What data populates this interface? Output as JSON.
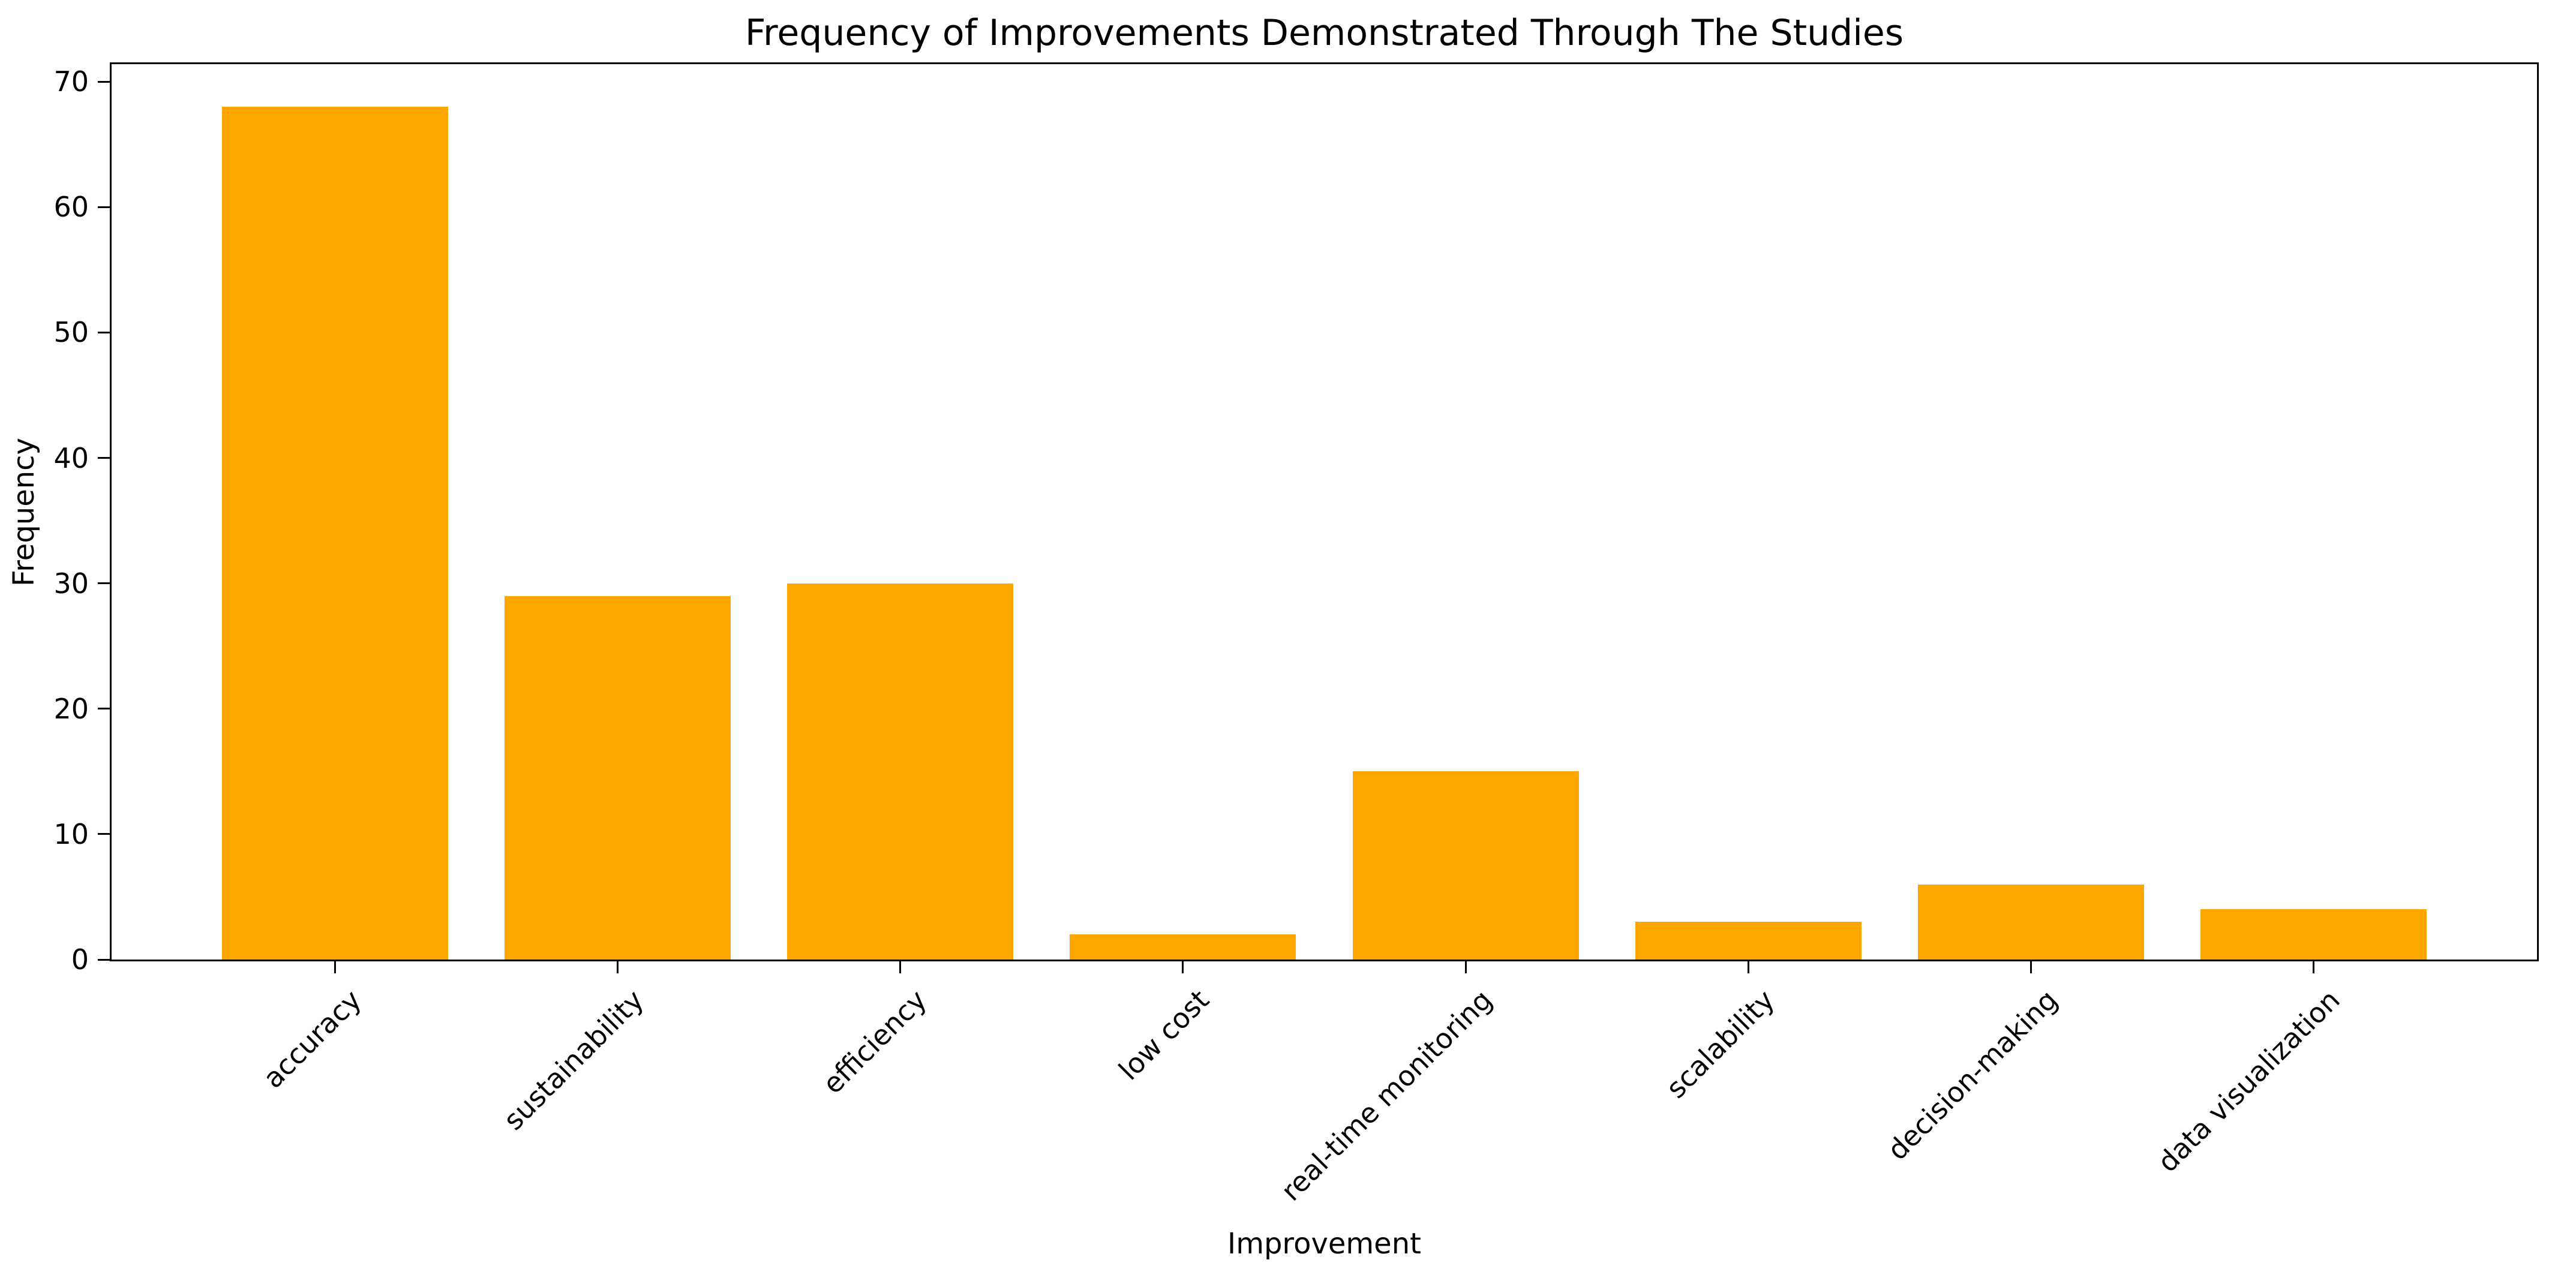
{
  "chart_data": {
    "type": "bar",
    "title": "Frequency of Improvements Demonstrated Through The Studies",
    "xlabel": "Improvement",
    "ylabel": "Frequency",
    "categories": [
      "accuracy",
      "sustainability",
      "efficiency",
      "low cost",
      "real-time monitoring",
      "scalability",
      "decision-making",
      "data visualization"
    ],
    "values": [
      68,
      29,
      30,
      2,
      15,
      3,
      6,
      4
    ],
    "yticks": [
      0,
      10,
      20,
      30,
      40,
      50,
      60,
      70
    ],
    "ylim": [
      0,
      71.4
    ],
    "bar_color": "#FFA500",
    "axis_color": "#000000",
    "background_color": "#ffffff",
    "grid": false,
    "legend": "none",
    "x_tick_rotation_deg": 45
  }
}
